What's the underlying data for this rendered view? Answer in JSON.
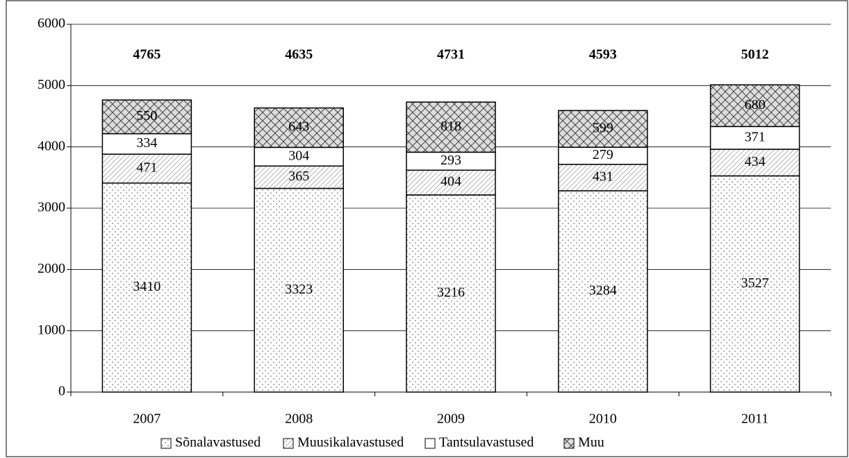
{
  "chart_data": {
    "type": "stacked_bar",
    "categories": [
      "2007",
      "2008",
      "2009",
      "2010",
      "2011"
    ],
    "series": [
      {
        "name": "Sõnalavastused",
        "color": "#ffffff",
        "pattern": "dots",
        "values": [
          3410,
          3323,
          3216,
          3284,
          3527
        ]
      },
      {
        "name": "Muusikalavastused",
        "color": "#ffffff",
        "pattern": "diagonal",
        "values": [
          471,
          365,
          404,
          431,
          434
        ]
      },
      {
        "name": "Tantsulavastused",
        "color": "#ffffff",
        "pattern": "none",
        "values": [
          334,
          304,
          293,
          279,
          371
        ]
      },
      {
        "name": "Muu",
        "color": "#ffffff",
        "pattern": "crosshatch",
        "values": [
          550,
          643,
          818,
          599,
          680
        ]
      }
    ],
    "totals": [
      4765,
      4635,
      4731,
      4593,
      5012
    ],
    "ylim": [
      0,
      6000
    ],
    "yticks": [
      0,
      1000,
      2000,
      3000,
      4000,
      5000,
      6000
    ],
    "grid": true,
    "legend": "bottom"
  }
}
